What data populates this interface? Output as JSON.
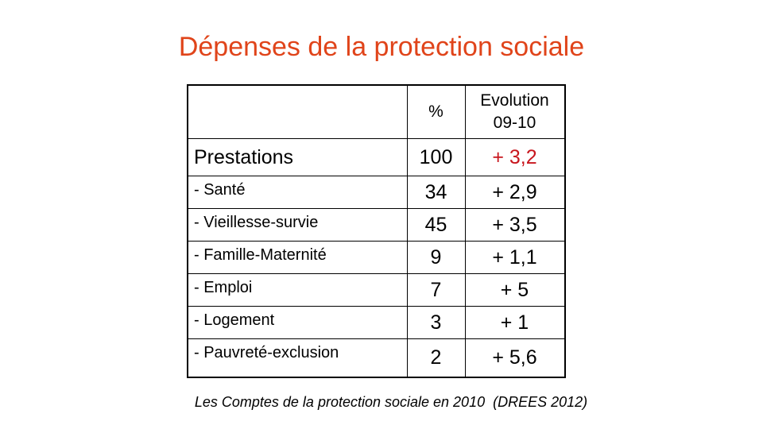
{
  "title": "Dépenses de la protection sociale",
  "table": {
    "header": {
      "label": "",
      "pct": "%",
      "evolution_line1": "Evolution",
      "evolution_line2": "09-10"
    },
    "rows": [
      {
        "label": "Prestations",
        "pct": "100",
        "evolution": "+ 3,2"
      },
      {
        "label": "- Santé",
        "pct": "34",
        "evolution": "+ 2,9"
      },
      {
        "label": "- Vieillesse-survie",
        "pct": "45",
        "evolution": "+ 3,5"
      },
      {
        "label": "- Famille-Maternité",
        "pct": "9",
        "evolution": "+ 1,1"
      },
      {
        "label": "- Emploi",
        "pct": "7",
        "evolution": "+ 5"
      },
      {
        "label": "- Logement",
        "pct": "3",
        "evolution": "+ 1"
      },
      {
        "label": "- Pauvreté-exclusion",
        "pct": "2",
        "evolution": "+ 5,6"
      }
    ]
  },
  "source": "Les Comptes de la protection sociale en 2010  (DREES 2012)",
  "colors": {
    "title": "#e0441a",
    "highlight": "#c8161d"
  }
}
